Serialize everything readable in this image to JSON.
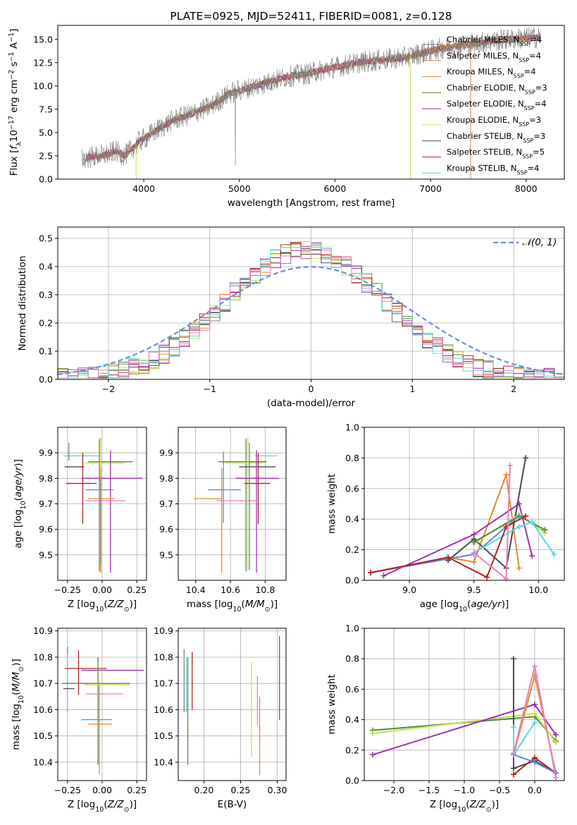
{
  "colors": {
    "Chabrier MILES": "#7f7f7f",
    "Salpeter MILES": "#e07a5f",
    "Kroupa MILES": "#e68a2e",
    "Chabrier ELODIE": "#4f8a3f",
    "Salpeter ELODIE": "#9b30b0",
    "Kroupa ELODIE": "#c7e04a",
    "Chabrier STELIB": "#4a4a4a",
    "Salpeter STELIB": "#b22222",
    "Kroupa STELIB": "#5fd6e0",
    "normal": "#6a8fd9",
    "pink": "#e87fc0",
    "blue": "#5b8bd8"
  },
  "chart_data": [
    {
      "id": "spectrum",
      "type": "line",
      "title": "PLATE=0925, MJD=52411, FIBERID=0081, z=0.128",
      "xlabel": "wavelength [Angstrom, rest frame]",
      "ylabel": "Flux [f_λ 10^-17 erg cm^-2 s^-1 A^-1]",
      "xlim": [
        3100,
        8400
      ],
      "ylim": [
        0,
        16.5
      ],
      "xticks": [
        "4000",
        "5000",
        "6000",
        "7000",
        "8000"
      ],
      "yticks": [
        "0.0",
        "2.5",
        "5.0",
        "7.5",
        "10.0",
        "12.5",
        "15.0"
      ],
      "grid": false,
      "legend_position": "right",
      "approx_continuum": [
        [
          3350,
          2.2
        ],
        [
          3600,
          2.6
        ],
        [
          3700,
          3.0
        ],
        [
          3800,
          2.5
        ],
        [
          3950,
          4.0
        ],
        [
          4100,
          5.0
        ],
        [
          4300,
          6.3
        ],
        [
          4500,
          7.0
        ],
        [
          4700,
          7.8
        ],
        [
          4900,
          9.2
        ],
        [
          5100,
          9.8
        ],
        [
          5300,
          10.4
        ],
        [
          5500,
          11.0
        ],
        [
          5700,
          11.3
        ],
        [
          5900,
          11.8
        ],
        [
          6100,
          12.2
        ],
        [
          6300,
          12.6
        ],
        [
          6500,
          12.8
        ],
        [
          6700,
          13.0
        ],
        [
          6900,
          13.5
        ],
        [
          7100,
          14.0
        ],
        [
          7300,
          14.3
        ],
        [
          7500,
          14.6
        ],
        [
          7800,
          15.0
        ],
        [
          8100,
          15.2
        ]
      ],
      "series": [
        {
          "label": "Chabrier MILES",
          "nssp": 4
        },
        {
          "label": "Salpeter MILES",
          "nssp": 4
        },
        {
          "label": "Kroupa MILES",
          "nssp": 4
        },
        {
          "label": "Chabrier ELODIE",
          "nssp": 3
        },
        {
          "label": "Salpeter ELODIE",
          "nssp": 4
        },
        {
          "label": "Kroupa ELODIE",
          "nssp": 3
        },
        {
          "label": "Chabrier STELIB",
          "nssp": 3
        },
        {
          "label": "Salpeter STELIB",
          "nssp": 5
        },
        {
          "label": "Kroupa STELIB",
          "nssp": 4
        }
      ]
    },
    {
      "id": "residuals",
      "type": "line",
      "xlabel": "(data-model)/error",
      "ylabel": "Normed distribution",
      "xlim": [
        -2.5,
        2.5
      ],
      "ylim": [
        0,
        0.54
      ],
      "xticks": [
        "−2",
        "−1",
        "0",
        "1",
        "2"
      ],
      "yticks": [
        "0.0",
        "0.1",
        "0.2",
        "0.3",
        "0.4",
        "0.5"
      ],
      "grid": true,
      "legend": "𝒩(0, 1)",
      "legend_position": "top-right",
      "histogram_bin_width": 0.1
    },
    {
      "id": "age_vs_Z",
      "type": "scatter",
      "xlabel": "Z [log10(Z/Z⊙)]",
      "ylabel": "age  [log10(age/yr)]",
      "xlim": [
        -0.32,
        0.32
      ],
      "ylim": [
        9.4,
        10.0
      ],
      "xticks": [
        "−0.25",
        "0.00",
        "0.25"
      ],
      "yticks": [
        "9.5",
        "9.6",
        "9.7",
        "9.8",
        "9.9"
      ],
      "grid": true,
      "points": [
        {
          "color": "Chabrier STELIB",
          "x": -0.19,
          "xerr": [
            0.08,
            0.06
          ],
          "y": 9.845,
          "yerr": [
            0.0,
            0.0
          ]
        },
        {
          "color": "Kroupa STELIB",
          "x": -0.22,
          "xerr": [
            0.06,
            0.2
          ],
          "y": 9.888,
          "yerr": [
            0.0,
            0.0
          ]
        },
        {
          "color": "Salpeter STELIB",
          "x": -0.14,
          "xerr": [
            0.12,
            0.1
          ],
          "y": 9.78,
          "yerr": [
            0.16,
            0.12
          ]
        },
        {
          "color": "Chabrier MILES",
          "x": -0.24,
          "xerr": [
            0.0,
            0.0
          ],
          "y": 9.87,
          "yerr": [
            0.0,
            0.07
          ]
        },
        {
          "color": "Chabrier ELODIE",
          "x": -0.02,
          "xerr": [
            0.08,
            0.24
          ],
          "y": 9.865,
          "yerr": [
            0.43,
            0.09
          ]
        },
        {
          "color": "Kroupa ELODIE",
          "x": -0.01,
          "xerr": [
            0.12,
            0.17
          ],
          "y": 9.86,
          "yerr": [
            0.42,
            0.1
          ]
        },
        {
          "color": "Salpeter ELODIE",
          "x": 0.06,
          "xerr": [
            0.21,
            0.23
          ],
          "y": 9.8,
          "yerr": [
            0.37,
            0.11
          ]
        },
        {
          "color": "blue",
          "x": -0.02,
          "xerr": [
            0.1,
            0.1
          ],
          "y": 9.755,
          "yerr": [
            0.0,
            0.0
          ]
        },
        {
          "color": "Kroupa MILES",
          "x": -0.01,
          "xerr": [
            0.09,
            0.1
          ],
          "y": 9.72,
          "yerr": [
            0.29,
            0.12
          ]
        },
        {
          "color": "pink",
          "x": 0.02,
          "xerr": [
            0.14,
            0.15
          ],
          "y": 9.712,
          "yerr": [
            0.0,
            0.0
          ]
        },
        {
          "color": "Chabrier MILES",
          "x": -0.01,
          "xerr": [
            0.0,
            0.0
          ],
          "y": 9.8,
          "yerr": [
            0.34,
            0.0
          ]
        }
      ]
    },
    {
      "id": "age_vs_mass",
      "type": "scatter",
      "xlabel": "mass [log10(M/M⊙)]",
      "xlim": [
        10.3,
        10.92
      ],
      "ylim": [
        9.4,
        10.0
      ],
      "xticks": [
        "10.4",
        "10.6",
        "10.8"
      ],
      "yticks": [
        "9.5",
        "9.6",
        "9.7",
        "9.8",
        "9.9"
      ],
      "grid": true,
      "points": [
        {
          "color": "Chabrier ELODIE",
          "x": 10.69,
          "xerr": [
            0.16,
            0.12
          ],
          "y": 9.865,
          "yerr": [
            0.43,
            0.09
          ]
        },
        {
          "color": "Kroupa ELODIE",
          "x": 10.7,
          "xerr": [
            0.13,
            0.09
          ],
          "y": 9.86,
          "yerr": [
            0.42,
            0.1
          ]
        },
        {
          "color": "Chabrier STELIB",
          "x": 10.76,
          "xerr": [
            0.11,
            0.1
          ],
          "y": 9.845,
          "yerr": [
            0.0,
            0.0
          ]
        },
        {
          "color": "Kroupa STELIB",
          "x": 10.81,
          "xerr": [
            0.07,
            0.06
          ],
          "y": 9.888,
          "yerr": [
            0.0,
            0.0
          ]
        },
        {
          "color": "Salpeter ELODIE",
          "x": 10.75,
          "xerr": [
            0.12,
            0.13
          ],
          "y": 9.8,
          "yerr": [
            0.37,
            0.11
          ]
        },
        {
          "color": "Salpeter STELIB",
          "x": 10.76,
          "xerr": [
            0.08,
            0.07
          ],
          "y": 9.78,
          "yerr": [
            0.16,
            0.12
          ]
        },
        {
          "color": "blue",
          "x": 10.56,
          "xerr": [
            0.09,
            0.1
          ],
          "y": 9.755,
          "yerr": [
            0.13,
            0.15
          ]
        },
        {
          "color": "Kroupa MILES",
          "x": 10.55,
          "xerr": [
            0.16,
            0.0
          ],
          "y": 9.72,
          "yerr": [
            0.29,
            0.12
          ]
        },
        {
          "color": "pink",
          "x": 10.66,
          "xerr": [
            0.14,
            0.09
          ],
          "y": 9.712,
          "yerr": [
            0.0,
            0.0
          ]
        },
        {
          "color": "Chabrier MILES",
          "x": 10.71,
          "xerr": [
            0.0,
            0.0
          ],
          "y": 9.8,
          "yerr": [
            0.36,
            0.14
          ]
        }
      ]
    },
    {
      "id": "weight_vs_age",
      "type": "line",
      "xlabel": "age  [log10(age/yr)]",
      "ylabel": "mass weight",
      "xlim": [
        8.65,
        10.2
      ],
      "ylim": [
        0,
        1.0
      ],
      "xticks": [
        "9.0",
        "9.5",
        "10.0"
      ],
      "yticks": [
        "0.0",
        "0.2",
        "0.4",
        "0.6",
        "0.8",
        "1.0"
      ],
      "grid": true,
      "series": [
        {
          "color": "Kroupa MILES",
          "x": [
            8.7,
            9.3,
            9.5,
            9.75,
            9.85
          ],
          "y": [
            0.05,
            0.15,
            0.12,
            0.69,
            0.08
          ]
        },
        {
          "color": "Salpeter ELODIE",
          "x": [
            8.8,
            9.5,
            9.85,
            9.95
          ],
          "y": [
            0.03,
            0.3,
            0.5,
            0.16
          ]
        },
        {
          "color": "Chabrier STELIB",
          "x": [
            9.3,
            9.5,
            9.75,
            9.9
          ],
          "y": [
            0.13,
            0.27,
            0.08,
            0.8
          ]
        },
        {
          "color": "Kroupa ELODIE",
          "x": [
            9.5,
            9.85,
            10.05
          ],
          "y": [
            0.24,
            0.43,
            0.31
          ]
        },
        {
          "color": "Chabrier ELODIE",
          "x": [
            9.5,
            9.85,
            10.05
          ],
          "y": [
            0.25,
            0.42,
            0.33
          ]
        },
        {
          "color": "blue",
          "x": [
            8.7,
            9.5,
            9.75,
            9.85
          ],
          "y": [
            0.05,
            0.17,
            0.35,
            0.42
          ]
        },
        {
          "color": "Kroupa STELIB",
          "x": [
            9.5,
            9.85,
            9.95,
            10.12
          ],
          "y": [
            0.18,
            0.35,
            0.38,
            0.17
          ]
        },
        {
          "color": "Salpeter STELIB",
          "x": [
            8.7,
            9.3,
            9.6,
            9.75,
            9.9
          ],
          "y": [
            0.05,
            0.15,
            0.02,
            0.35,
            0.42
          ]
        },
        {
          "color": "pink",
          "x": [
            9.5,
            9.75,
            9.78
          ],
          "y": [
            0.18,
            0.01,
            0.75
          ]
        }
      ]
    },
    {
      "id": "mass_vs_Z",
      "type": "scatter",
      "xlabel": "Z [log10(Z/Z⊙)]",
      "ylabel": "mass [log10(M/M⊙)]",
      "xlim": [
        -0.32,
        0.32
      ],
      "ylim": [
        10.33,
        10.91
      ],
      "xticks": [
        "−0.25",
        "0.00",
        "0.25"
      ],
      "yticks": [
        "10.4",
        "10.5",
        "10.6",
        "10.7",
        "10.8",
        "10.9"
      ],
      "grid": true,
      "points": [
        {
          "color": "Chabrier MILES",
          "x": -0.25,
          "xerr": [
            0.0,
            0.0
          ],
          "y": 10.72,
          "yerr": [
            0.13,
            0.12
          ]
        },
        {
          "color": "Kroupa STELIB",
          "x": -0.25,
          "xerr": [
            0.0,
            0.0
          ],
          "y": 10.7,
          "yerr": [
            0.11,
            0.11
          ]
        },
        {
          "color": "Salpeter STELIB",
          "x": -0.17,
          "xerr": [
            0.1,
            0.2
          ],
          "y": 10.757,
          "yerr": [
            0.1,
            0.07
          ]
        },
        {
          "color": "Chabrier STELIB",
          "x": -0.2,
          "xerr": [
            0.08,
            0.0
          ],
          "y": 10.68,
          "yerr": [
            0.0,
            0.0
          ]
        },
        {
          "color": "Salpeter ELODIE",
          "x": 0.06,
          "xerr": [
            0.21,
            0.24
          ],
          "y": 10.75,
          "yerr": [
            0.0,
            0.0
          ]
        },
        {
          "color": "Chabrier ELODIE",
          "x": -0.03,
          "xerr": [
            0.26,
            0.23
          ],
          "y": 10.7,
          "yerr": [
            0.31,
            0.1
          ]
        },
        {
          "color": "Kroupa ELODIE",
          "x": 0.0,
          "xerr": [
            0.13,
            0.2
          ],
          "y": 10.695,
          "yerr": [
            0.0,
            0.0
          ]
        },
        {
          "color": "pink",
          "x": 0.02,
          "xerr": [
            0.14,
            0.13
          ],
          "y": 10.66,
          "yerr": [
            0.0,
            0.0
          ]
        },
        {
          "color": "blue",
          "x": -0.05,
          "xerr": [
            0.1,
            0.12
          ],
          "y": 10.562,
          "yerr": [
            0.0,
            0.0
          ]
        },
        {
          "color": "Kroupa MILES",
          "x": -0.02,
          "xerr": [
            0.08,
            0.09
          ],
          "y": 10.545,
          "yerr": [
            0.19,
            0.15
          ]
        }
      ]
    },
    {
      "id": "mass_vs_ebv",
      "type": "scatter",
      "xlabel": "E(B-V)",
      "xlim": [
        0.165,
        0.312
      ],
      "ylim": [
        10.33,
        10.91
      ],
      "xticks": [
        "0.20",
        "0.25",
        "0.30"
      ],
      "yticks": [
        "10.4",
        "10.5",
        "10.6",
        "10.7",
        "10.8",
        "10.9"
      ],
      "grid": true,
      "points": [
        {
          "color": "Chabrier MILES",
          "x": 0.173,
          "y": 10.71,
          "yerr": [
            0.12,
            0.12
          ]
        },
        {
          "color": "Kroupa STELIB",
          "x": 0.176,
          "y": 10.7,
          "yerr": [
            0.11,
            0.1
          ]
        },
        {
          "color": "Chabrier ELODIE",
          "x": 0.178,
          "y": 10.6,
          "yerr": [
            0.21,
            0.2
          ]
        },
        {
          "color": "Salpeter STELIB",
          "x": 0.184,
          "y": 10.7,
          "yerr": [
            0.1,
            0.12
          ]
        },
        {
          "color": "Kroupa ELODIE",
          "x": 0.265,
          "y": 10.6,
          "yerr": [
            0.18,
            0.18
          ]
        },
        {
          "color": "pink",
          "x": 0.273,
          "y": 10.65,
          "yerr": [
            0.11,
            0.08
          ]
        },
        {
          "color": "Kroupa MILES",
          "x": 0.276,
          "y": 10.5,
          "yerr": [
            0.15,
            0.15
          ]
        },
        {
          "color": "Salpeter ELODIE",
          "x": 0.303,
          "y": 10.72,
          "yerr": [
            0.16,
            0.16
          ]
        }
      ]
    },
    {
      "id": "weight_vs_Z",
      "type": "line",
      "xlabel": "Z [log10(Z/Z⊙)]",
      "ylabel": "mass weight",
      "xlim": [
        -2.42,
        0.42
      ],
      "ylim": [
        0,
        1.0
      ],
      "xticks": [
        "−2.0",
        "−1.5",
        "−1.0",
        "−0.5",
        "0.0"
      ],
      "yticks": [
        "0.0",
        "0.2",
        "0.4",
        "0.6",
        "0.8",
        "1.0"
      ],
      "grid": true,
      "series": [
        {
          "color": "Chabrier ELODIE",
          "x": [
            -2.3,
            0.0,
            0.3
          ],
          "y": [
            0.33,
            0.42,
            0.26
          ]
        },
        {
          "color": "Kroupa ELODIE",
          "x": [
            -2.3,
            0.0,
            0.3
          ],
          "y": [
            0.31,
            0.44,
            0.25
          ]
        },
        {
          "color": "Salpeter ELODIE",
          "x": [
            -2.3,
            0.0,
            0.3
          ],
          "y": [
            0.17,
            0.5,
            0.3
          ]
        },
        {
          "color": "Kroupa MILES",
          "x": [
            -0.3,
            0.0,
            0.3
          ],
          "y": [
            0.17,
            0.69,
            0.05
          ]
        },
        {
          "color": "Chabrier STELIB",
          "x": [
            -0.3,
            -0.3,
            0.0,
            0.3
          ],
          "y": [
            0.8,
            0.08,
            0.13,
            0.05
          ]
        },
        {
          "color": "Salpeter STELIB",
          "x": [
            -0.3,
            0.0,
            0.3
          ],
          "y": [
            0.04,
            0.15,
            0.05
          ]
        },
        {
          "color": "Kroupa STELIB",
          "x": [
            -0.3,
            -0.3,
            0.0
          ],
          "y": [
            0.35,
            0.17,
            0.38
          ]
        },
        {
          "color": "blue",
          "x": [
            -0.3,
            0.0,
            0.3
          ],
          "y": [
            0.17,
            0.12,
            0.05
          ]
        },
        {
          "color": "pink",
          "x": [
            -0.3,
            0.0,
            0.3
          ],
          "y": [
            0.18,
            0.75,
            0.02
          ]
        }
      ]
    }
  ]
}
